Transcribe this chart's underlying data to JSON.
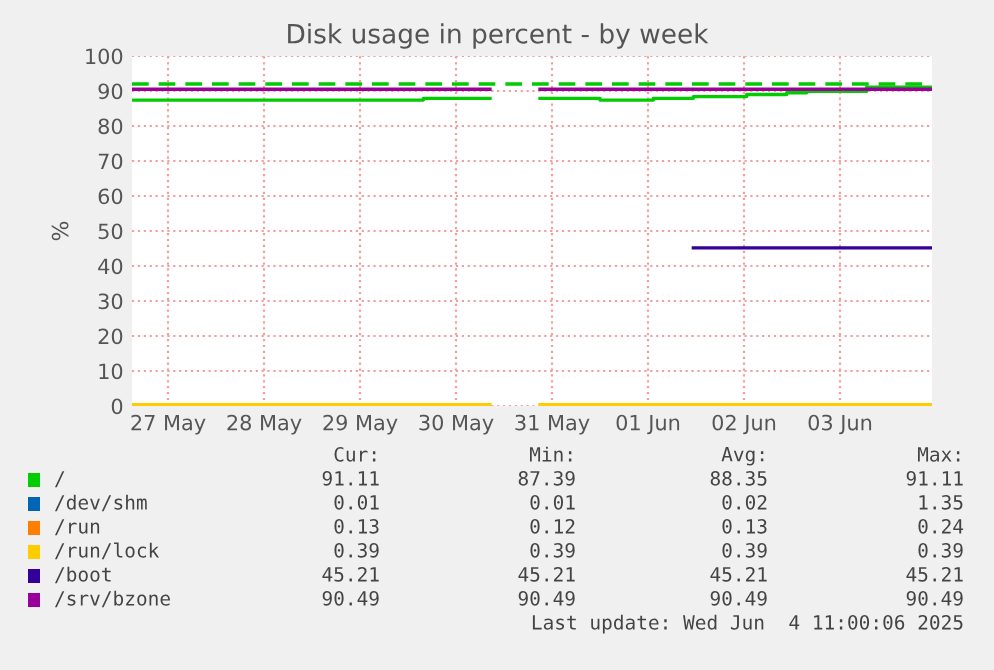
{
  "chart_data": {
    "type": "step",
    "title": "Disk usage in percent - by week",
    "ylabel": "%",
    "xlim": [
      "2025-05-27T03:00",
      "2025-06-04T11:00"
    ],
    "xticks": [
      {
        "value": "2025-05-27T12:00",
        "label": "27 May"
      },
      {
        "value": "2025-05-28T12:00",
        "label": "28 May"
      },
      {
        "value": "2025-05-29T12:00",
        "label": "29 May"
      },
      {
        "value": "2025-05-30T12:00",
        "label": "30 May"
      },
      {
        "value": "2025-05-31T12:00",
        "label": "31 May"
      },
      {
        "value": "2025-06-01T12:00",
        "label": "01 Jun"
      },
      {
        "value": "2025-06-02T12:00",
        "label": "02 Jun"
      },
      {
        "value": "2025-06-03T12:00",
        "label": "03 Jun"
      }
    ],
    "ylim": [
      0,
      100
    ],
    "yticks": [
      0,
      10,
      20,
      30,
      40,
      50,
      60,
      70,
      80,
      90,
      100
    ],
    "grid": true,
    "legend": "bottom",
    "series": [
      {
        "name": "/",
        "color": "#00cc00",
        "x": [
          "2025-05-27T03:20",
          "2025-05-30T03:50",
          "2025-05-30T20:30",
          "2025-05-31T09:00",
          "2025-06-01T00:00",
          "2025-06-01T13:20",
          "2025-06-01T23:20",
          "2025-06-02T12:40",
          "2025-06-02T22:40",
          "2025-06-03T03:40",
          "2025-06-03T18:40",
          "2025-06-04T10:50"
        ],
        "values": [
          87.4,
          87.9,
          null,
          87.9,
          87.4,
          87.9,
          88.4,
          89.0,
          89.5,
          89.9,
          91.1,
          91.1
        ]
      },
      {
        "name": "/dev/shm",
        "color": "#0066b3"
      },
      {
        "name": "/run",
        "color": "#ff8000"
      },
      {
        "name": "/run/lock",
        "color": "#ffcc00",
        "x": [
          "2025-05-27T03:20",
          "2025-05-30T20:30",
          "2025-05-31T09:00",
          "2025-06-04T10:50"
        ],
        "values": [
          0.4,
          null,
          0.4,
          0.4
        ]
      },
      {
        "name": "/boot",
        "color": "#330099",
        "x": [
          "2025-06-01T23:20",
          "2025-06-04T10:50"
        ],
        "values": [
          45.2,
          45.2
        ]
      },
      {
        "name": "/srv/bzone",
        "color": "#990099",
        "x": [
          "2025-05-27T03:20",
          "2025-05-30T20:30",
          "2025-05-31T09:00",
          "2025-06-04T10:50"
        ],
        "values": [
          90.5,
          null,
          90.5,
          90.5
        ]
      }
    ],
    "ref_lines": [
      {
        "axis": "y",
        "value": 92,
        "color": "#00cc00",
        "line_style": "dashed"
      }
    ],
    "annotations": [
      "Cur: Min: Avg: Max:",
      "91.11 87.39 88.35 91.11",
      "0.01 0.01 0.02 1.35",
      "0.13 0.12 0.13 0.24",
      "0.39 0.39 0.39 0.39",
      "45.21 45.21 45.21 45.21",
      "90.49 90.49 90.49 90.49",
      "Last update: Wed Jun  4 11:00:06 2025"
    ]
  }
}
